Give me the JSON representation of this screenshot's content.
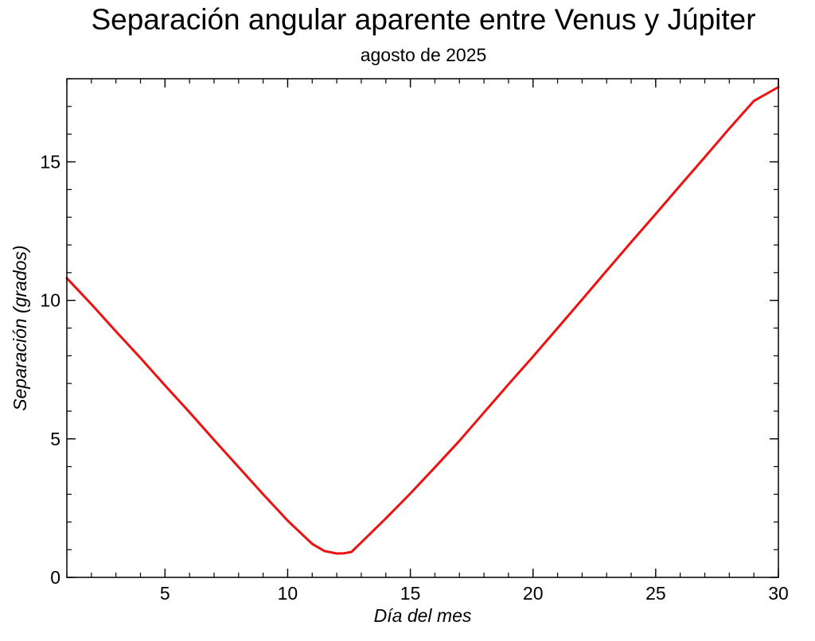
{
  "chart_data": {
    "type": "line",
    "title": "Separación angular aparente entre Venus y Júpiter",
    "subtitle": "agosto de 2025",
    "xlabel": "Día del mes",
    "ylabel": "Separación (grados)",
    "xlim": [
      1,
      30
    ],
    "ylim": [
      0,
      18
    ],
    "xticks": [
      5,
      10,
      15,
      20,
      25,
      30
    ],
    "yticks": [
      0,
      5,
      10,
      15
    ],
    "x_minor_step": 1,
    "y_minor_step": 1,
    "grid": false,
    "legend": "none",
    "series": [
      {
        "color": "#ee1111",
        "x": [
          1,
          2,
          3,
          4,
          5,
          6,
          7,
          8,
          9,
          10,
          11,
          11.5,
          12,
          12.3,
          12.6,
          13,
          14,
          15,
          16,
          17,
          18,
          19,
          20,
          21,
          22,
          23,
          24,
          25,
          26,
          27,
          28,
          29,
          30
        ],
        "y": [
          10.8,
          9.86,
          8.88,
          7.92,
          6.93,
          5.96,
          4.96,
          3.98,
          3.0,
          2.05,
          1.21,
          0.95,
          0.86,
          0.87,
          0.92,
          1.26,
          2.13,
          3.03,
          3.97,
          4.93,
          5.95,
          6.97,
          7.97,
          9.0,
          10.03,
          11.07,
          12.1,
          13.12,
          14.15,
          15.17,
          16.2,
          17.2,
          17.7
        ]
      }
    ]
  }
}
